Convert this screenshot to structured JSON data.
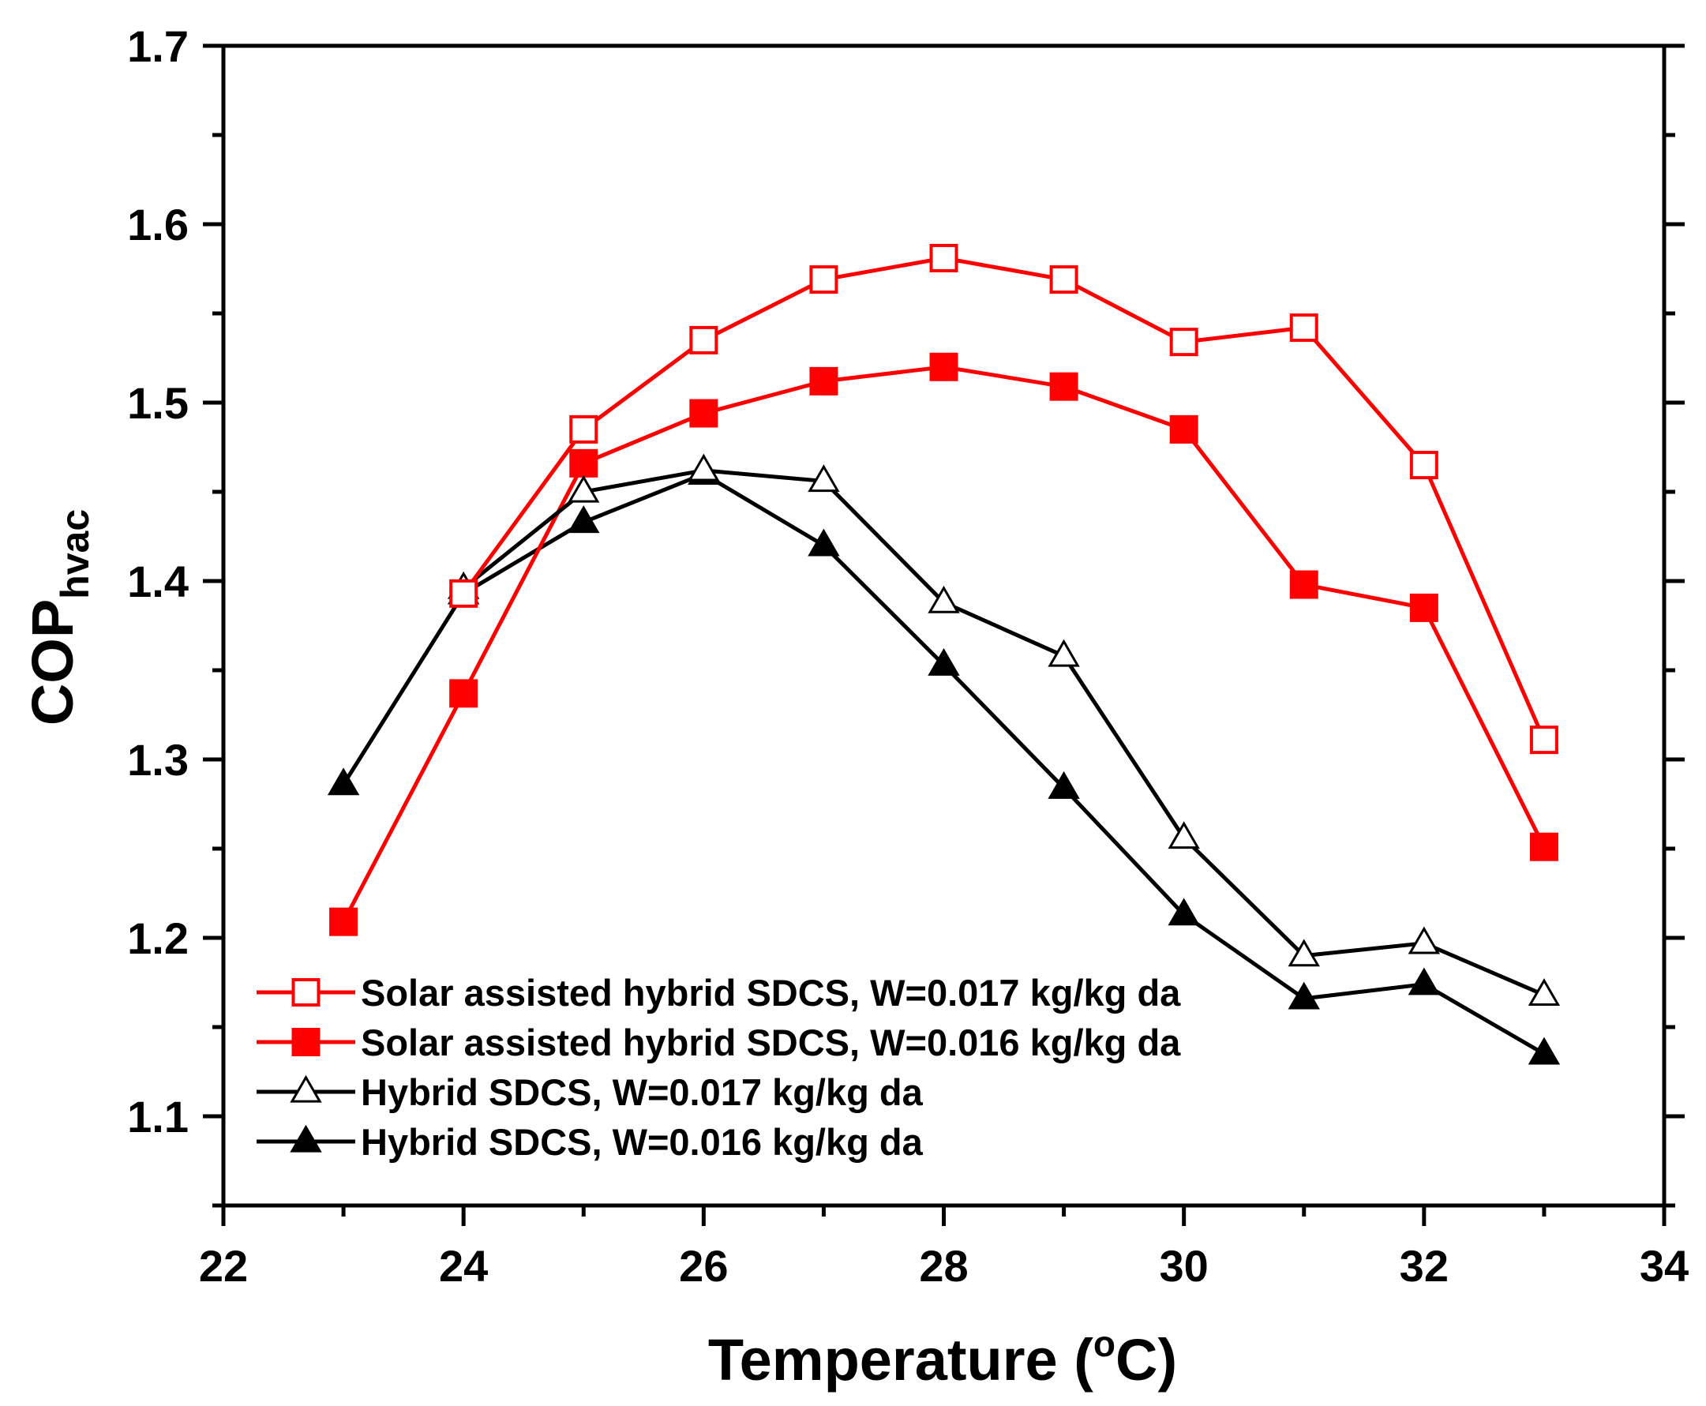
{
  "chart_data": {
    "type": "line",
    "xlabel": "Temperature (°C)",
    "xlabel_parts": {
      "pre": "Temperature (",
      "sup": "o",
      "post": "C)"
    },
    "ylabel": "COP hvac",
    "ylabel_parts": {
      "main": "COP",
      "sub": "hvac"
    },
    "xlim": [
      22,
      34
    ],
    "ylim": [
      1.05,
      1.7
    ],
    "xticks": [
      22,
      24,
      26,
      28,
      30,
      32,
      34
    ],
    "yticks": [
      1.1,
      1.2,
      1.3,
      1.4,
      1.5,
      1.6,
      1.7
    ],
    "x_minor_step": 1,
    "y_minor_step": 0.05,
    "grid": false,
    "legend_position": "bottom-left",
    "series": [
      {
        "name": "Solar assisted hybrid SDCS, W=0.017 kg/kg da",
        "color": "#ff0000",
        "marker": "square",
        "filled": false,
        "x": [
          24,
          25,
          26,
          27,
          28,
          29,
          30,
          31,
          32,
          33
        ],
        "values": [
          1.393,
          1.485,
          1.535,
          1.569,
          1.581,
          1.569,
          1.534,
          1.542,
          1.465,
          1.311
        ]
      },
      {
        "name": "Solar assisted hybrid SDCS, W=0.016 kg/kg da",
        "color": "#ff0000",
        "marker": "square",
        "filled": true,
        "x": [
          23,
          24,
          25,
          26,
          27,
          28,
          29,
          30,
          31,
          32,
          33
        ],
        "values": [
          1.209,
          1.337,
          1.466,
          1.494,
          1.512,
          1.52,
          1.509,
          1.485,
          1.398,
          1.385,
          1.251
        ]
      },
      {
        "name": "Hybrid SDCS, W=0.017 kg/kg da",
        "color": "#000000",
        "marker": "triangle",
        "filled": false,
        "x": [
          24,
          25,
          26,
          27,
          28,
          29,
          30,
          31,
          32,
          33
        ],
        "values": [
          1.396,
          1.45,
          1.462,
          1.456,
          1.388,
          1.358,
          1.256,
          1.19,
          1.197,
          1.168
        ]
      },
      {
        "name": "Hybrid SDCS, W=0.016 kg/kg da",
        "color": "#000000",
        "marker": "triangle",
        "filled": true,
        "x": [
          23,
          24,
          25,
          26,
          27,
          28,
          29,
          30,
          31,
          32,
          33
        ],
        "values": [
          1.286,
          1.393,
          1.433,
          1.46,
          1.42,
          1.353,
          1.284,
          1.213,
          1.166,
          1.174,
          1.135
        ]
      }
    ]
  }
}
